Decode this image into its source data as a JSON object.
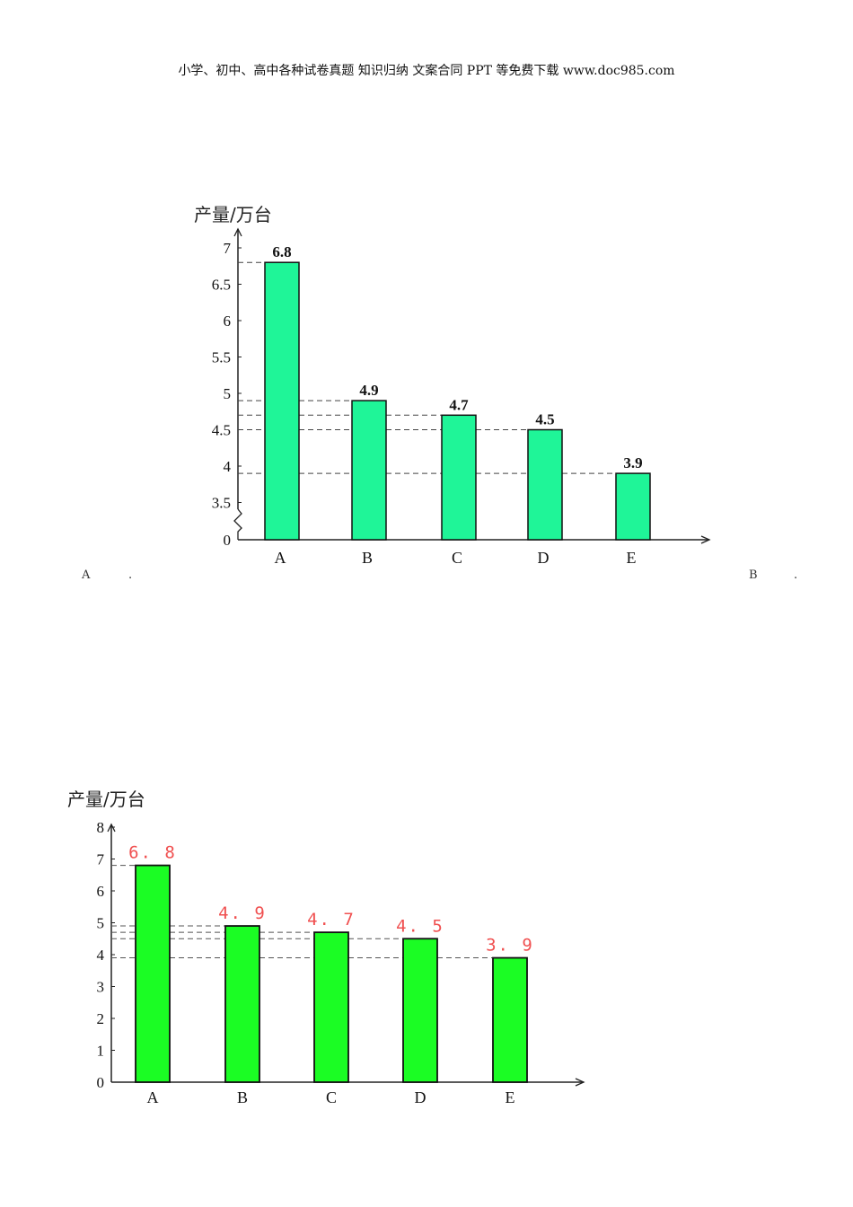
{
  "header": {
    "text": "小学、初中、高中各种试卷真题 知识归纳 文案合同 PPT 等免费下载   www.doc985.com"
  },
  "options": {
    "a_label": "A",
    "a_dot": ".",
    "b_label": "B",
    "b_dot": "."
  },
  "chart_data": [
    {
      "type": "bar",
      "ylabel": "产量/万台",
      "categories": [
        "A",
        "B",
        "C",
        "D",
        "E"
      ],
      "values": [
        6.8,
        4.9,
        4.7,
        4.5,
        3.9
      ],
      "data_labels": [
        "6.8",
        "4.9",
        "4.7",
        "4.5",
        "3.9"
      ],
      "yticks": [
        "0",
        "3.5",
        "4",
        "4.5",
        "5",
        "5.5",
        "6",
        "6.5",
        "7"
      ],
      "ylim": [
        3.0,
        7.0
      ],
      "axis_break": true,
      "bar_color": "#1ff598"
    },
    {
      "type": "bar",
      "ylabel": "产量/万台",
      "categories": [
        "A",
        "B",
        "C",
        "D",
        "E"
      ],
      "values": [
        6.8,
        4.9,
        4.7,
        4.5,
        3.9
      ],
      "data_labels": [
        "6. 8",
        "4. 9",
        "4. 7",
        "4. 5",
        "3. 9"
      ],
      "yticks": [
        "0",
        "1",
        "2",
        "3",
        "4",
        "5",
        "6",
        "7",
        "8"
      ],
      "ylim": [
        0,
        8
      ],
      "axis_break": false,
      "bar_color": "#1bfd24"
    }
  ]
}
